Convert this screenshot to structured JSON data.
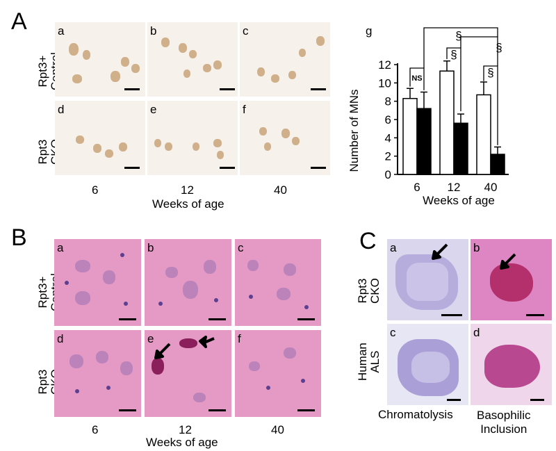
{
  "panelA": {
    "letter": "A",
    "row_labels": [
      "Rpt3+\nControl",
      "Rpt3\nCKO"
    ],
    "sub_labels": [
      "a",
      "b",
      "c",
      "d",
      "e",
      "f"
    ],
    "x_ticks": [
      "6",
      "12",
      "40"
    ],
    "x_title": "Weeks of age"
  },
  "panelB": {
    "letter": "B",
    "row_labels": [
      "Rpt3+\nControl",
      "Rpt3\nCKO"
    ],
    "sub_labels": [
      "a",
      "b",
      "c",
      "d",
      "e",
      "f"
    ],
    "x_ticks": [
      "6",
      "12",
      "40"
    ],
    "x_title": "Weeks of age"
  },
  "panelC": {
    "letter": "C",
    "row_labels": [
      "Rpt3\nCKO",
      "Human\nALS"
    ],
    "sub_labels": [
      "a",
      "b",
      "c",
      "d"
    ],
    "col_labels": [
      "Chromatolysis",
      "Basophilic\nInclusion"
    ]
  },
  "colors": {
    "control_bar": "#ffffff",
    "cko_bar": "#000000",
    "ihc_bg": "#f6f1ea",
    "he_bg": "#e59ac6",
    "nissl_bg": "#dcd8ee"
  },
  "chart_data": {
    "type": "bar",
    "panel_label": "g",
    "categories": [
      "6",
      "12",
      "40"
    ],
    "series": [
      {
        "values": [
          8.3,
          11.3,
          8.7
        ],
        "errors": [
          1.1,
          1.1,
          1.4
        ],
        "color": "#ffffff"
      },
      {
        "values": [
          7.2,
          5.6,
          2.2
        ],
        "errors": [
          1.8,
          1.0,
          0.8
        ],
        "color": "#000000"
      }
    ],
    "ylabel": "Number of MNs",
    "xlabel": "Weeks of age",
    "ylim": [
      0,
      12
    ],
    "yticks": [
      "0",
      "2",
      "4",
      "6",
      "8",
      "10",
      "12"
    ],
    "significance": [
      "NS",
      "§",
      "§",
      "§",
      "§"
    ]
  }
}
